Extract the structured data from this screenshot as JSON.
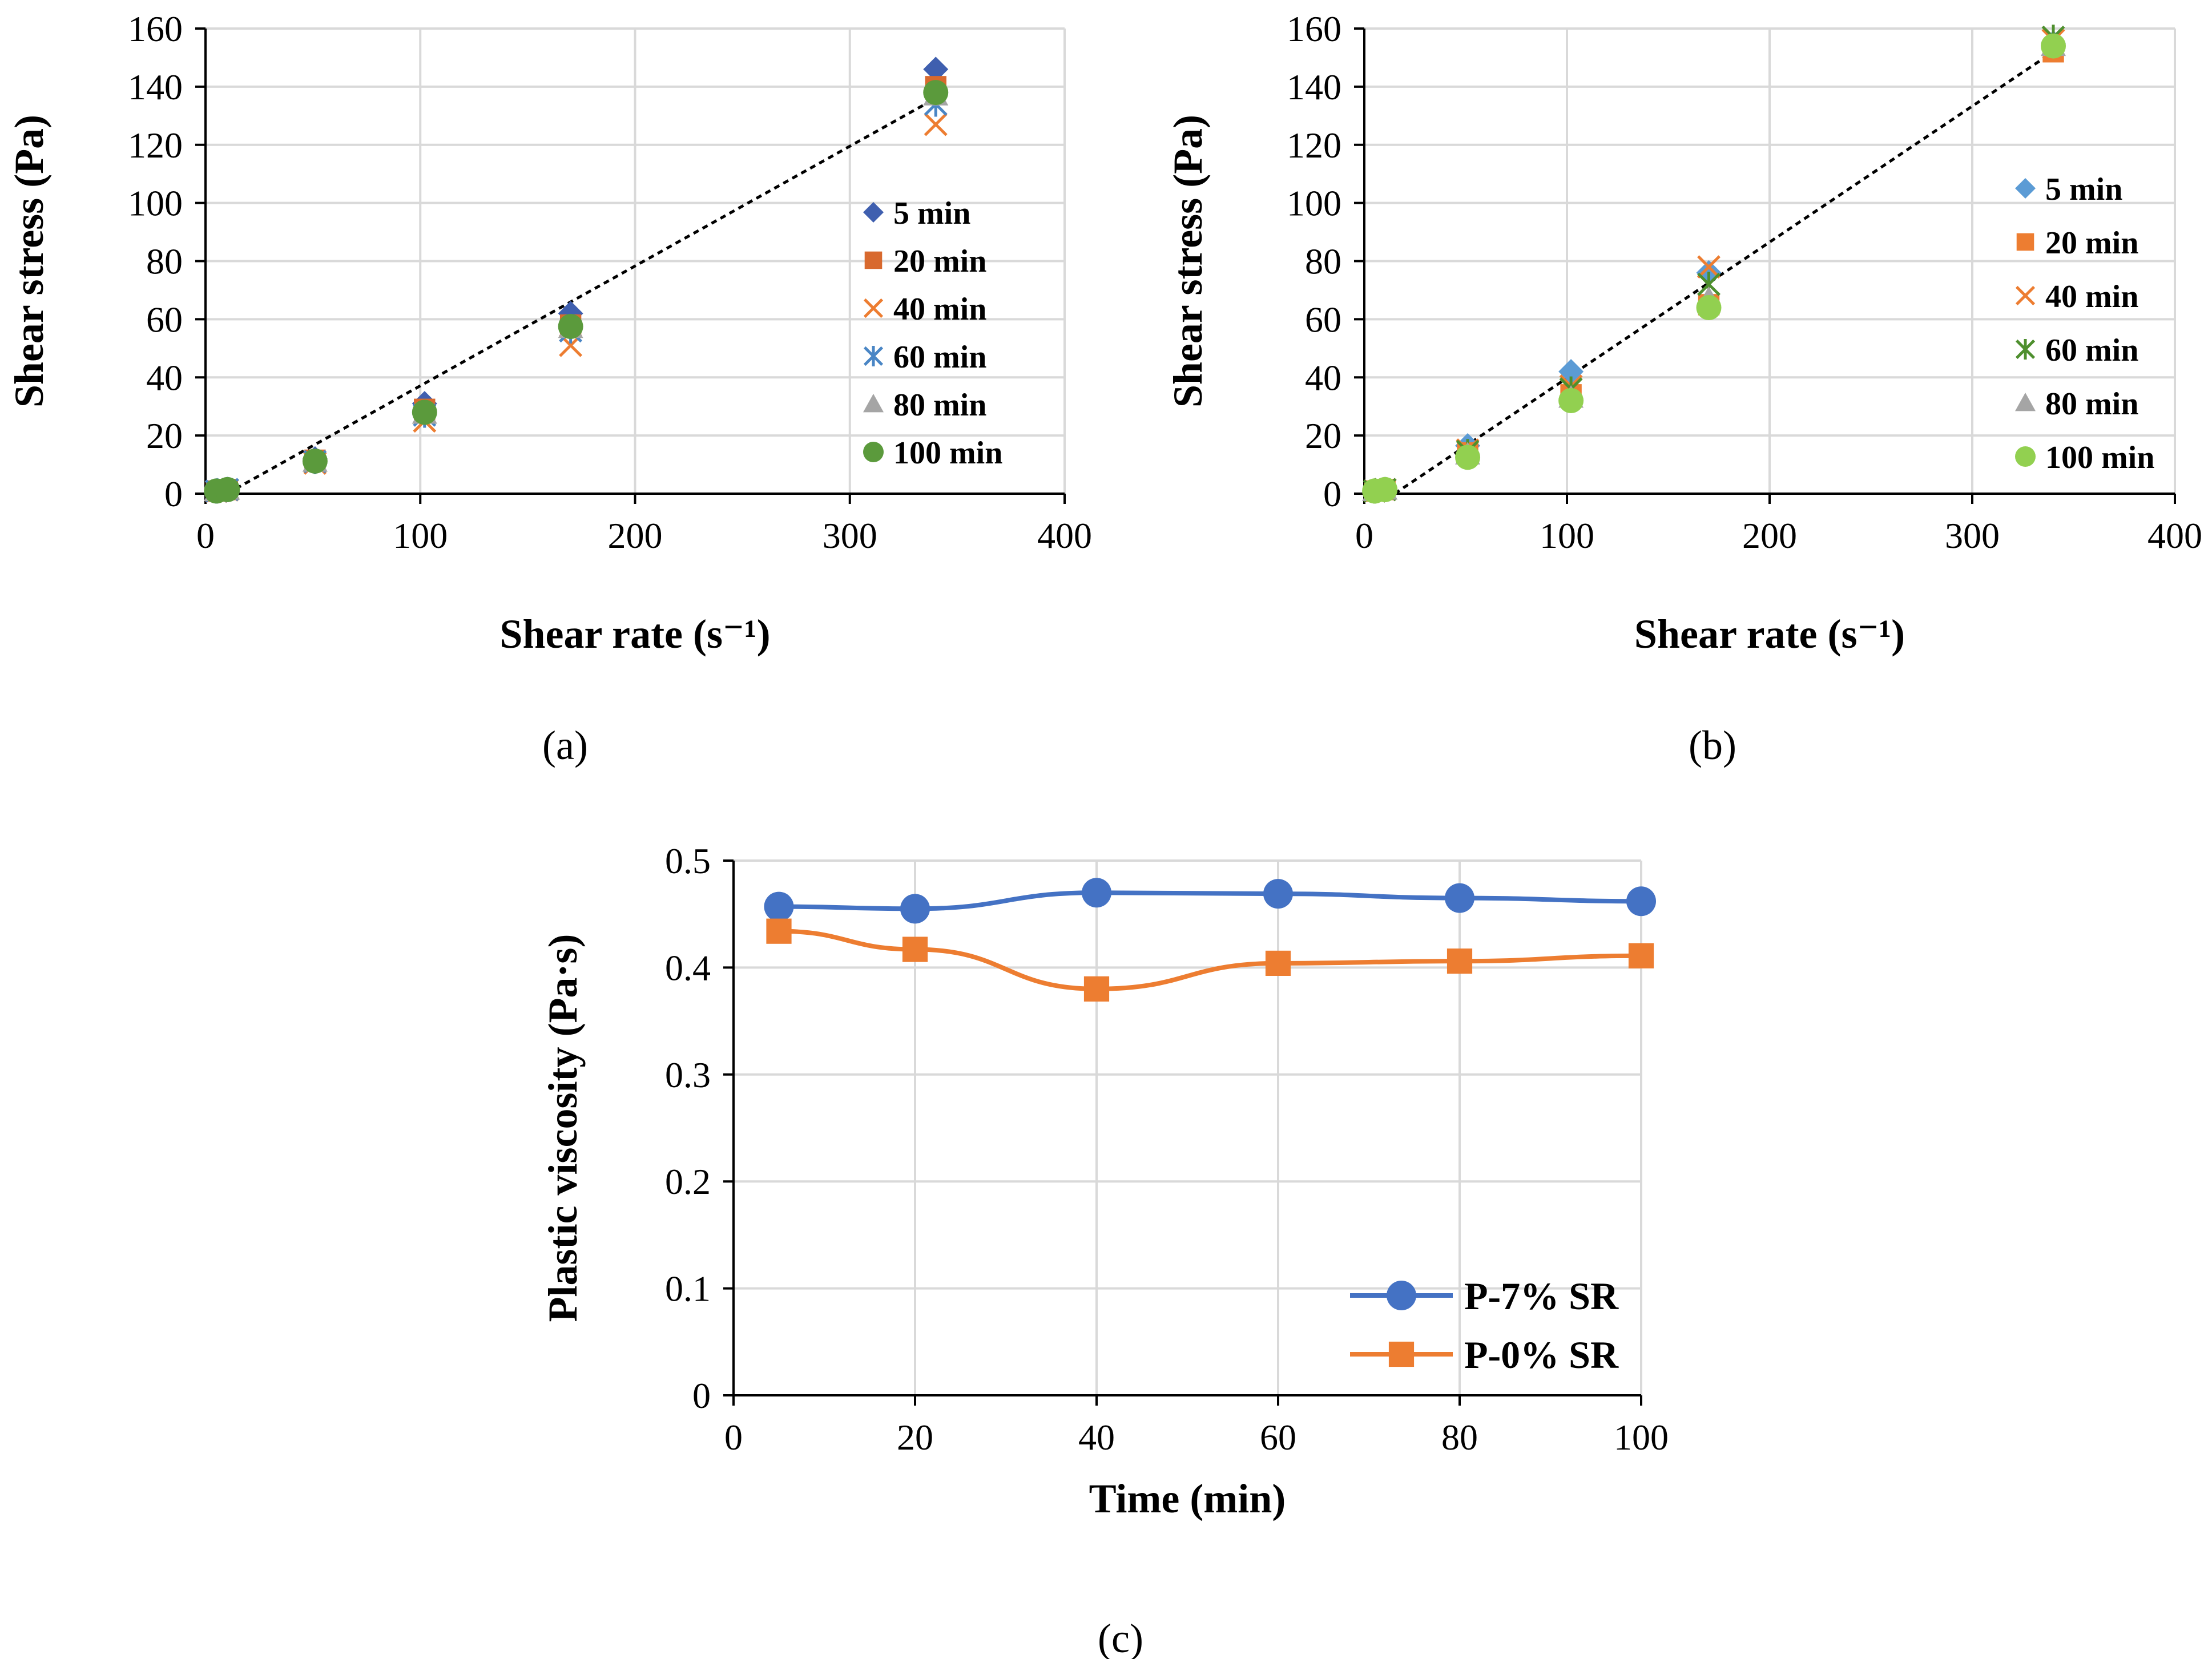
{
  "chart_data": [
    {
      "id": "a",
      "type": "scatter",
      "panel_label": "(a)",
      "xlabel": "Shear rate (s⁻¹)",
      "ylabel": "Shear stress (Pa)",
      "xlim": [
        0,
        400
      ],
      "ylim": [
        0,
        160
      ],
      "xticks": [
        "0",
        "100",
        "200",
        "300",
        "400"
      ],
      "yticks": [
        "0",
        "20",
        "40",
        "60",
        "80",
        "100",
        "120",
        "140",
        "160"
      ],
      "grid": true,
      "legend_position": "right",
      "x": [
        5.1,
        10.2,
        51,
        102,
        170,
        340
      ],
      "series": [
        {
          "name": "5 min",
          "marker": "diamond",
          "color": "#3F5FAF",
          "values": [
            1.0,
            1.5,
            12.0,
            31.0,
            62.0,
            146.0
          ]
        },
        {
          "name": "20 min",
          "marker": "square",
          "color": "#D8692E",
          "values": [
            0.9,
            1.4,
            11.5,
            29.0,
            58.0,
            140.0
          ]
        },
        {
          "name": "40 min",
          "marker": "x",
          "color": "#ED7D31",
          "values": [
            0.8,
            1.3,
            10.5,
            25.0,
            51.0,
            127.0
          ]
        },
        {
          "name": "60 min",
          "marker": "asterisk",
          "color": "#4A86C5",
          "values": [
            0.9,
            1.4,
            11.0,
            27.0,
            56.0,
            134.0
          ]
        },
        {
          "name": "80 min",
          "marker": "triangle",
          "color": "#A5A5A5",
          "values": [
            0.9,
            1.4,
            11.0,
            27.5,
            57.0,
            137.0
          ]
        },
        {
          "name": "100 min",
          "marker": "circle",
          "color": "#5B9A3C",
          "values": [
            0.9,
            1.4,
            11.2,
            28.0,
            57.5,
            138.0
          ]
        }
      ],
      "trendline": {
        "style": "dotted",
        "color": "#000000",
        "x": [
          10,
          340
        ],
        "y": [
          0,
          136
        ]
      }
    },
    {
      "id": "b",
      "type": "scatter",
      "panel_label": "(b)",
      "xlabel": "Shear rate (s⁻¹)",
      "ylabel": "Shear stress (Pa)",
      "xlim": [
        0,
        400
      ],
      "ylim": [
        0,
        160
      ],
      "xticks": [
        "0",
        "100",
        "200",
        "300",
        "400"
      ],
      "yticks": [
        "0",
        "20",
        "40",
        "60",
        "80",
        "100",
        "120",
        "140",
        "160"
      ],
      "grid": true,
      "legend_position": "right",
      "x": [
        5.1,
        10.2,
        51,
        102,
        170,
        340
      ],
      "series": [
        {
          "name": "5 min",
          "marker": "diamond",
          "color": "#5B9BD5",
          "values": [
            1.0,
            1.5,
            16.5,
            42.0,
            76.0,
            155.0
          ]
        },
        {
          "name": "20 min",
          "marker": "square",
          "color": "#ED7D31",
          "values": [
            0.9,
            1.4,
            14.0,
            34.0,
            65.0,
            152.0
          ]
        },
        {
          "name": "40 min",
          "marker": "x",
          "color": "#ED7D31",
          "values": [
            0.9,
            1.4,
            15.0,
            37.0,
            78.0,
            156.0
          ]
        },
        {
          "name": "60 min",
          "marker": "asterisk",
          "color": "#4E8F2E",
          "values": [
            0.9,
            1.4,
            14.5,
            36.0,
            72.0,
            157.0
          ]
        },
        {
          "name": "80 min",
          "marker": "triangle",
          "color": "#A5A5A5",
          "values": [
            0.9,
            1.4,
            13.5,
            33.0,
            67.0,
            154.0
          ]
        },
        {
          "name": "100 min",
          "marker": "circle",
          "color": "#92D050",
          "values": [
            0.9,
            1.4,
            12.5,
            32.0,
            64.0,
            154.0
          ]
        }
      ],
      "trendline": {
        "style": "dotted",
        "color": "#000000",
        "x": [
          15,
          340
        ],
        "y": [
          0,
          152
        ]
      }
    },
    {
      "id": "c",
      "type": "line",
      "panel_label": "(c)",
      "xlabel": "Time (min)",
      "ylabel": "Plastic viscosity (Pa·s)",
      "xlim": [
        0,
        100
      ],
      "ylim": [
        0,
        0.5
      ],
      "xticks": [
        "0",
        "20",
        "40",
        "60",
        "80",
        "100"
      ],
      "yticks": [
        "0",
        "0.1",
        "0.2",
        "0.3",
        "0.4",
        "0.5"
      ],
      "grid": true,
      "legend_position": "bottom-right",
      "x": [
        5,
        20,
        40,
        60,
        80,
        100
      ],
      "series": [
        {
          "name": "P-7% SR",
          "marker": "circle",
          "color": "#4472C4",
          "values": [
            0.457,
            0.455,
            0.47,
            0.469,
            0.465,
            0.462
          ]
        },
        {
          "name": "P-0% SR",
          "marker": "square",
          "color": "#ED7D31",
          "values": [
            0.434,
            0.417,
            0.38,
            0.404,
            0.406,
            0.411
          ]
        }
      ]
    }
  ]
}
